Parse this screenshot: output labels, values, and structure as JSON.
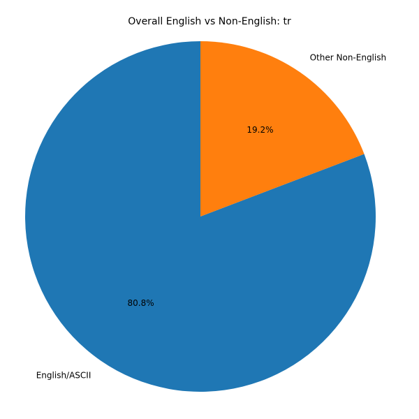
{
  "chart_data": {
    "type": "pie",
    "title": "Overall English vs Non-English: tr",
    "slices": [
      {
        "label": "English/ASCII",
        "value": 80.8,
        "pct_label": "80.8%",
        "color": "#1f77b4"
      },
      {
        "label": "Other Non-English",
        "value": 19.2,
        "pct_label": "19.2%",
        "color": "#ff7f0e"
      }
    ],
    "start_angle": "top",
    "direction": "counterclockwise"
  }
}
